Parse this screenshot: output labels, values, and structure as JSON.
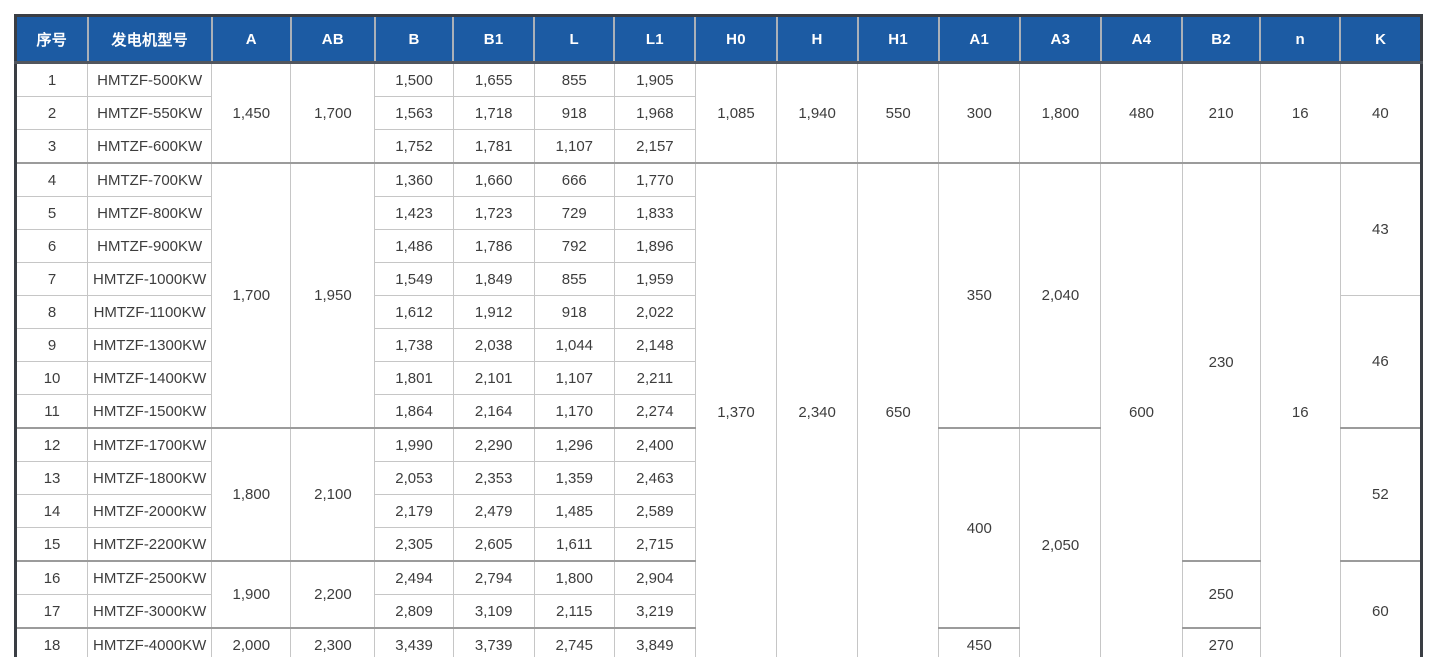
{
  "table": {
    "title": "generator-dimension-spec-table",
    "columns": [
      {
        "key": "no",
        "label": "序号",
        "type": "per_row"
      },
      {
        "key": "model",
        "label": "发电机型号",
        "type": "per_row"
      },
      {
        "key": "A",
        "label": "A",
        "type": "merged"
      },
      {
        "key": "AB",
        "label": "AB",
        "type": "merged"
      },
      {
        "key": "B",
        "label": "B",
        "type": "per_row"
      },
      {
        "key": "B1",
        "label": "B1",
        "type": "per_row"
      },
      {
        "key": "L",
        "label": "L",
        "type": "per_row"
      },
      {
        "key": "L1",
        "label": "L1",
        "type": "per_row"
      },
      {
        "key": "H0",
        "label": "H0",
        "type": "merged"
      },
      {
        "key": "H",
        "label": "H",
        "type": "merged"
      },
      {
        "key": "H1",
        "label": "H1",
        "type": "merged"
      },
      {
        "key": "A1",
        "label": "A1",
        "type": "merged"
      },
      {
        "key": "A3",
        "label": "A3",
        "type": "merged"
      },
      {
        "key": "A4",
        "label": "A4",
        "type": "merged"
      },
      {
        "key": "B2",
        "label": "B2",
        "type": "merged"
      },
      {
        "key": "n",
        "label": "n",
        "type": "merged"
      },
      {
        "key": "K",
        "label": "K",
        "type": "merged"
      }
    ],
    "rows": [
      {
        "no": "1",
        "model": "HMTZF-500KW",
        "B": "1,500",
        "B1": "1,655",
        "L": "855",
        "L1": "1,905"
      },
      {
        "no": "2",
        "model": "HMTZF-550KW",
        "B": "1,563",
        "B1": "1,718",
        "L": "918",
        "L1": "1,968"
      },
      {
        "no": "3",
        "model": "HMTZF-600KW",
        "B": "1,752",
        "B1": "1,781",
        "L": "1,107",
        "L1": "2,157"
      },
      {
        "no": "4",
        "model": "HMTZF-700KW",
        "B": "1,360",
        "B1": "1,660",
        "L": "666",
        "L1": "1,770"
      },
      {
        "no": "5",
        "model": "HMTZF-800KW",
        "B": "1,423",
        "B1": "1,723",
        "L": "729",
        "L1": "1,833"
      },
      {
        "no": "6",
        "model": "HMTZF-900KW",
        "B": "1,486",
        "B1": "1,786",
        "L": "792",
        "L1": "1,896"
      },
      {
        "no": "7",
        "model": "HMTZF-1000KW",
        "B": "1,549",
        "B1": "1,849",
        "L": "855",
        "L1": "1,959"
      },
      {
        "no": "8",
        "model": "HMTZF-1100KW",
        "B": "1,612",
        "B1": "1,912",
        "L": "918",
        "L1": "2,022"
      },
      {
        "no": "9",
        "model": "HMTZF-1300KW",
        "B": "1,738",
        "B1": "2,038",
        "L": "1,044",
        "L1": "2,148"
      },
      {
        "no": "10",
        "model": "HMTZF-1400KW",
        "B": "1,801",
        "B1": "2,101",
        "L": "1,107",
        "L1": "2,211"
      },
      {
        "no": "11",
        "model": "HMTZF-1500KW",
        "B": "1,864",
        "B1": "2,164",
        "L": "1,170",
        "L1": "2,274"
      },
      {
        "no": "12",
        "model": "HMTZF-1700KW",
        "B": "1,990",
        "B1": "2,290",
        "L": "1,296",
        "L1": "2,400"
      },
      {
        "no": "13",
        "model": "HMTZF-1800KW",
        "B": "2,053",
        "B1": "2,353",
        "L": "1,359",
        "L1": "2,463"
      },
      {
        "no": "14",
        "model": "HMTZF-2000KW",
        "B": "2,179",
        "B1": "2,479",
        "L": "1,485",
        "L1": "2,589"
      },
      {
        "no": "15",
        "model": "HMTZF-2200KW",
        "B": "2,305",
        "B1": "2,605",
        "L": "1,611",
        "L1": "2,715"
      },
      {
        "no": "16",
        "model": "HMTZF-2500KW",
        "B": "2,494",
        "B1": "2,794",
        "L": "1,800",
        "L1": "2,904"
      },
      {
        "no": "17",
        "model": "HMTZF-3000KW",
        "B": "2,809",
        "B1": "3,109",
        "L": "2,115",
        "L1": "3,219"
      },
      {
        "no": "18",
        "model": "HMTZF-4000KW",
        "B": "3,439",
        "B1": "3,739",
        "L": "2,745",
        "L1": "3,849"
      }
    ],
    "merges": {
      "A": [
        [
          1,
          3,
          "1,450"
        ],
        [
          4,
          8,
          "1,700"
        ],
        [
          12,
          4,
          "1,800"
        ],
        [
          16,
          2,
          "1,900"
        ],
        [
          18,
          1,
          "2,000"
        ]
      ],
      "AB": [
        [
          1,
          3,
          "1,700"
        ],
        [
          4,
          8,
          "1,950"
        ],
        [
          12,
          4,
          "2,100"
        ],
        [
          16,
          2,
          "2,200"
        ],
        [
          18,
          1,
          "2,300"
        ]
      ],
      "H0": [
        [
          1,
          3,
          "1,085"
        ],
        [
          4,
          15,
          "1,370"
        ]
      ],
      "H": [
        [
          1,
          3,
          "1,940"
        ],
        [
          4,
          15,
          "2,340"
        ]
      ],
      "H1": [
        [
          1,
          3,
          "550"
        ],
        [
          4,
          15,
          "650"
        ]
      ],
      "A1": [
        [
          1,
          3,
          "300"
        ],
        [
          4,
          8,
          "350"
        ],
        [
          12,
          6,
          "400"
        ],
        [
          18,
          1,
          "450"
        ]
      ],
      "A3": [
        [
          1,
          3,
          "1,800"
        ],
        [
          4,
          8,
          "2,040"
        ],
        [
          12,
          7,
          "2,050"
        ]
      ],
      "A4": [
        [
          1,
          3,
          "480"
        ],
        [
          4,
          15,
          "600"
        ]
      ],
      "B2": [
        [
          1,
          3,
          "210"
        ],
        [
          4,
          12,
          "230"
        ],
        [
          16,
          2,
          "250"
        ],
        [
          18,
          1,
          "270"
        ]
      ],
      "n": [
        [
          1,
          3,
          "16"
        ],
        [
          4,
          15,
          "16"
        ]
      ],
      "K": [
        [
          1,
          3,
          "40"
        ],
        [
          4,
          4,
          "43"
        ],
        [
          8,
          4,
          "46"
        ],
        [
          12,
          4,
          "52"
        ],
        [
          16,
          3,
          "60"
        ]
      ]
    },
    "group_start_rows": [
      4,
      12,
      16,
      18
    ],
    "colors": {
      "header_bg": "#1c5ba3",
      "header_text": "#ffffff",
      "body_text": "#3d3d3d",
      "grid_line": "#c6c6c6",
      "group_line": "#9b9b9b",
      "outer_border": "#3a3e44"
    }
  }
}
